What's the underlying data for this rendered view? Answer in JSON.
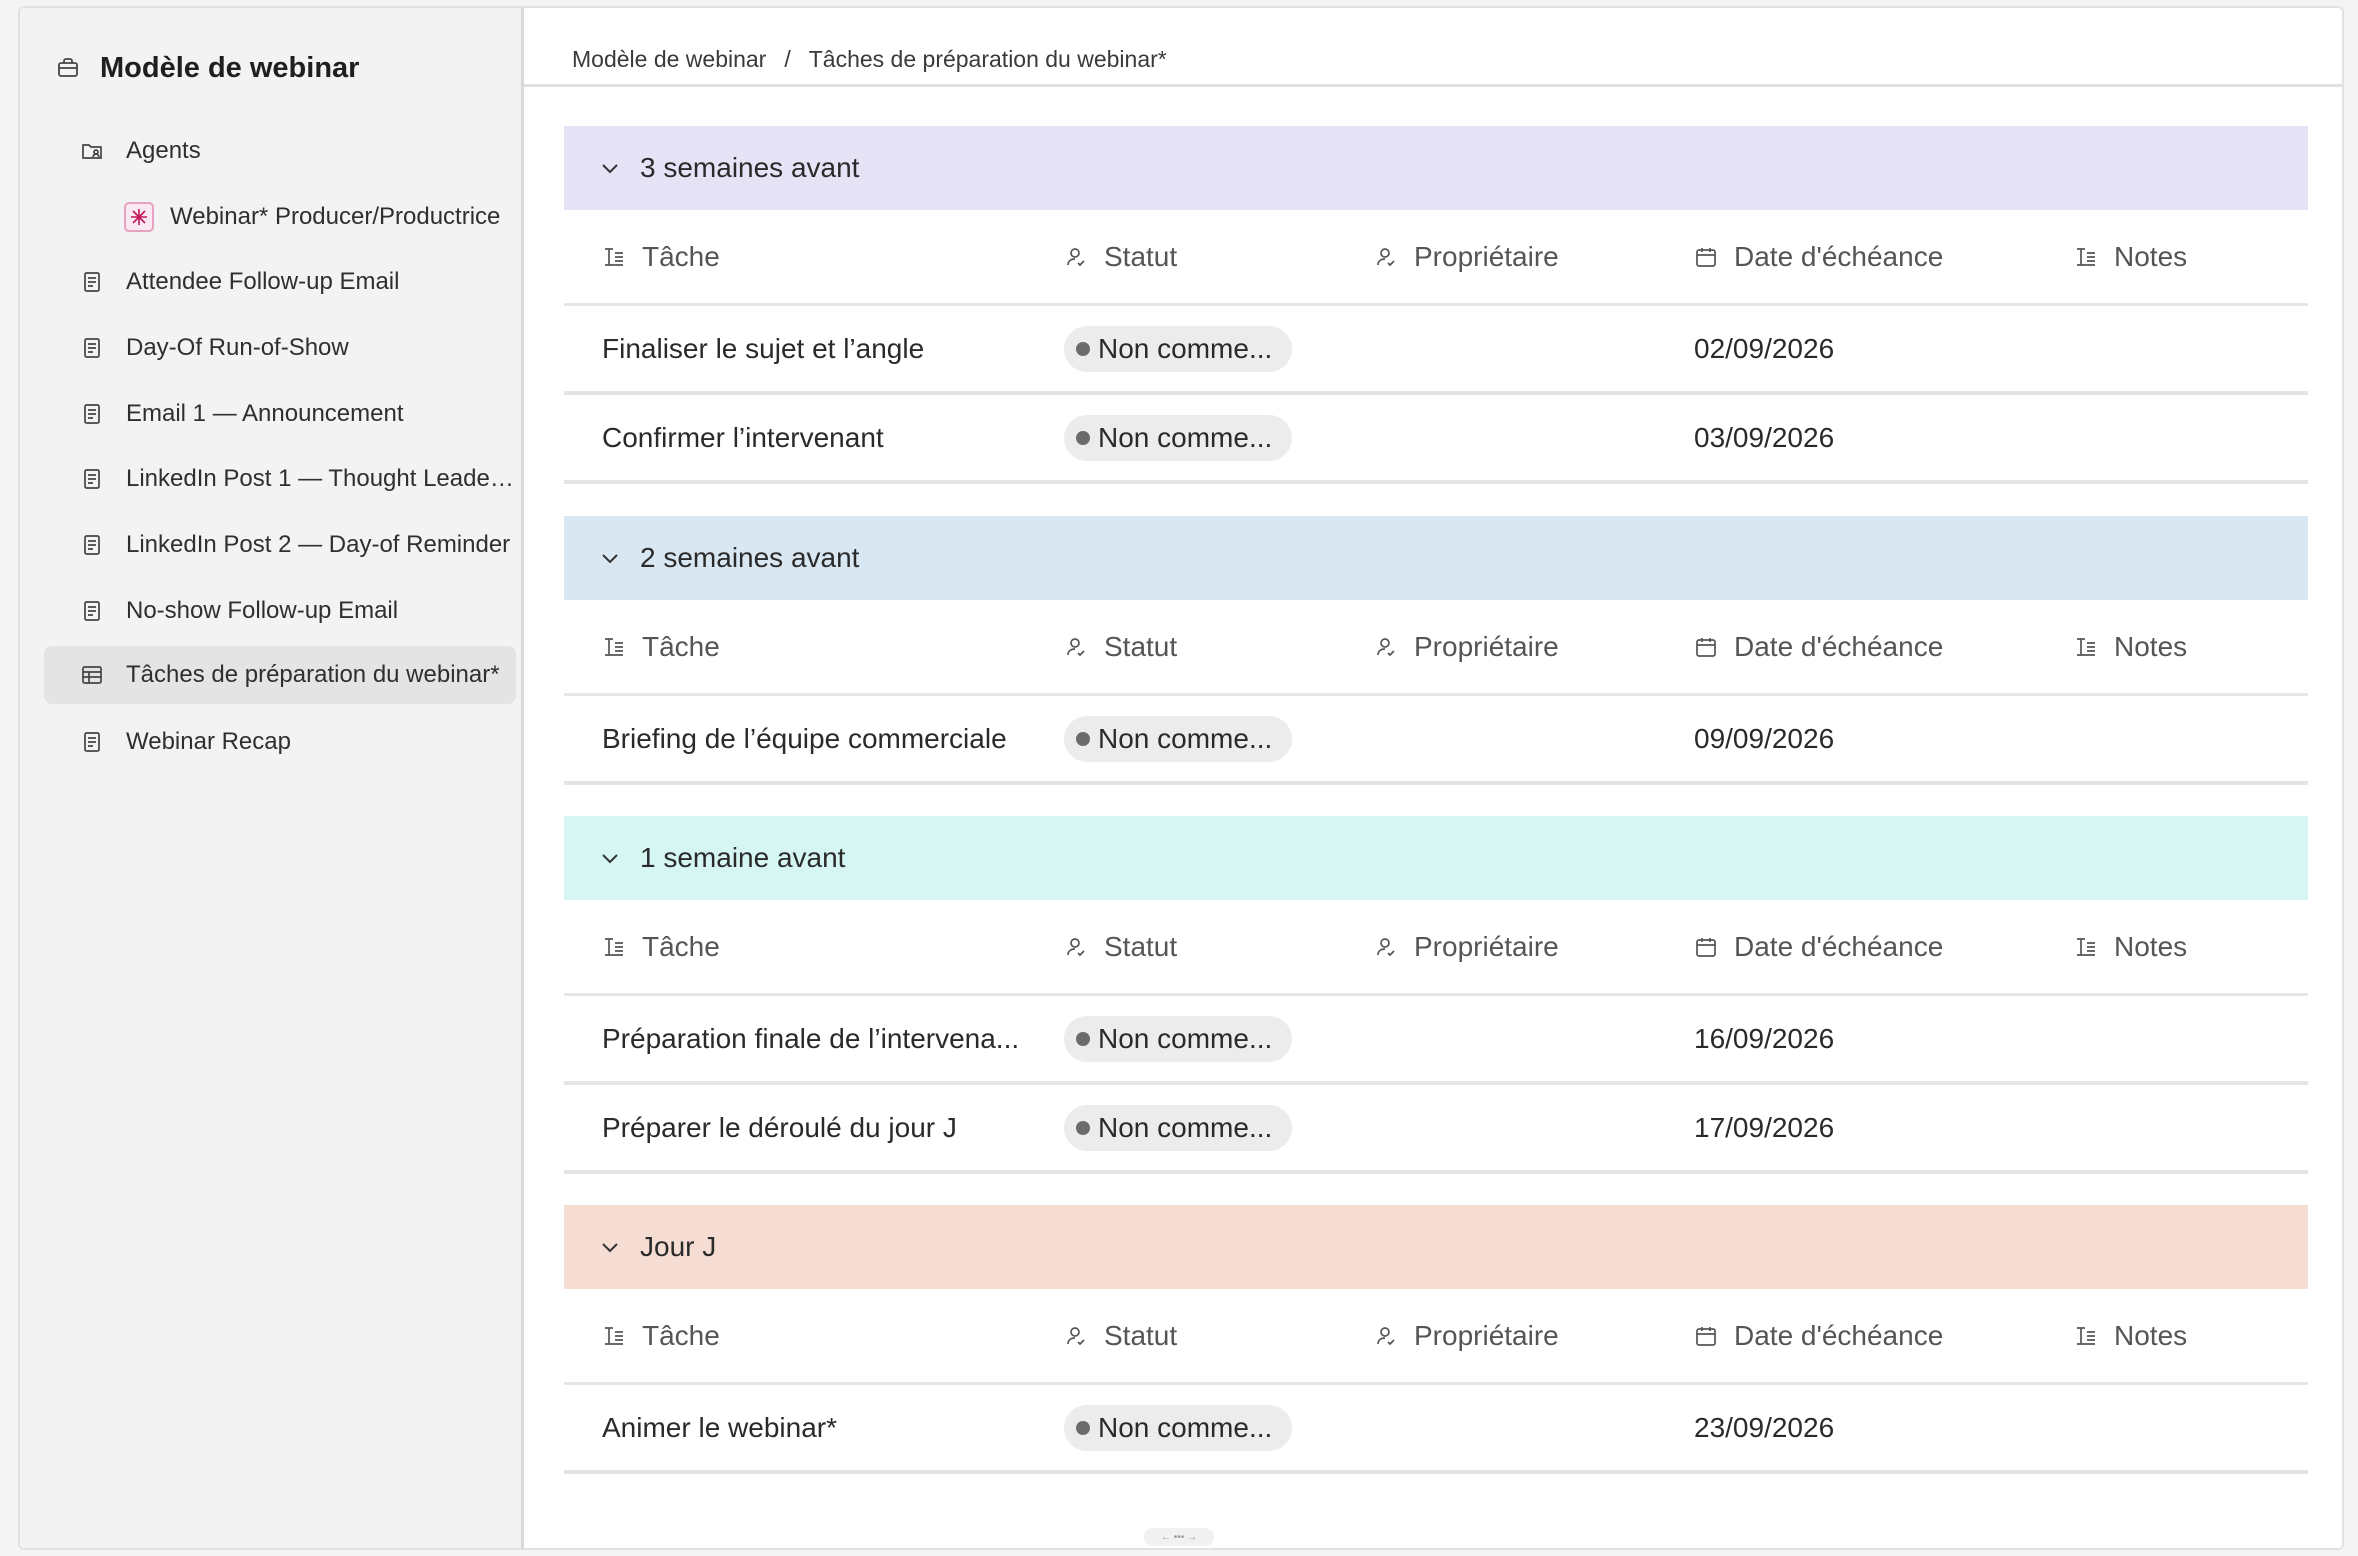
{
  "sidebar": {
    "title": "Modèle de webinar",
    "items": [
      {
        "label": "Agents",
        "icon": "folder-agent-icon"
      },
      {
        "label": "Webinar* Producer/Productrice",
        "icon": "agent-avatar-icon"
      },
      {
        "label": "Attendee Follow-up Email",
        "icon": "document-icon"
      },
      {
        "label": "Day-Of Run-of-Show",
        "icon": "document-icon"
      },
      {
        "label": "Email 1 — Announcement",
        "icon": "document-icon"
      },
      {
        "label": "LinkedIn Post 1 — Thought Leader...",
        "icon": "document-icon"
      },
      {
        "label": "LinkedIn Post 2 — Day-of Reminder",
        "icon": "document-icon"
      },
      {
        "label": "No-show Follow-up Email",
        "icon": "document-icon"
      },
      {
        "label": "Tâches de préparation du webinar*",
        "icon": "table-icon"
      },
      {
        "label": "Webinar Recap",
        "icon": "document-icon"
      }
    ]
  },
  "breadcrumb": {
    "root": "Modèle de webinar",
    "separator": "/",
    "current": "Tâches de préparation du webinar*"
  },
  "columns": {
    "task": "Tâche",
    "status": "Statut",
    "owner": "Propriétaire",
    "due": "Date d'échéance",
    "notes": "Notes"
  },
  "groups": [
    {
      "title": "3 semaines avant",
      "color": "#e6e3f7",
      "rows": [
        {
          "task": "Finaliser le sujet et l’angle",
          "status": "Non comme...",
          "due": "02/09/2026"
        },
        {
          "task": "Confirmer l’intervenant",
          "status": "Non comme...",
          "due": "03/09/2026"
        }
      ]
    },
    {
      "title": "2 semaines avant",
      "color": "#d9e7f2",
      "rows": [
        {
          "task": "Briefing de l’équipe commerciale",
          "status": "Non comme...",
          "due": "09/09/2026"
        }
      ]
    },
    {
      "title": "1 semaine avant",
      "color": "#d6f6f4",
      "rows": [
        {
          "task": "Préparation finale de l’intervena...",
          "status": "Non comme...",
          "due": "16/09/2026"
        },
        {
          "task": "Préparer le déroulé du jour J",
          "status": "Non comme...",
          "due": "17/09/2026"
        }
      ]
    },
    {
      "title": "Jour J",
      "color": "#f6ddd4",
      "rows": [
        {
          "task": "Animer le webinar*",
          "status": "Non comme...",
          "due": "23/09/2026"
        }
      ]
    }
  ]
}
